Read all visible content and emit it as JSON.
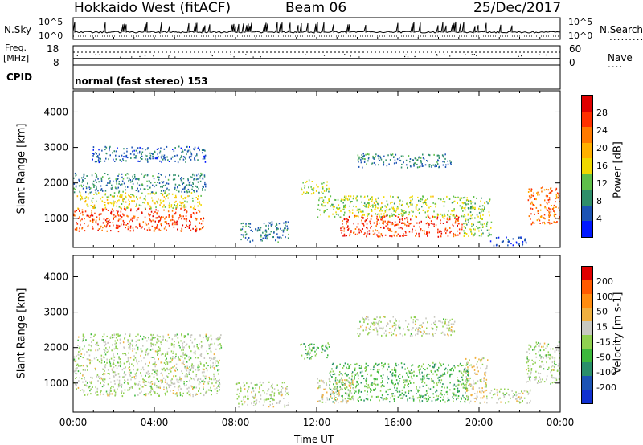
{
  "header": {
    "radar_title": "Hokkaido West (fitACF)",
    "beam": "Beam 06",
    "date": "25/Dec/2017"
  },
  "top_strip": {
    "nsky_label": "N.Sky",
    "nsearch_label": "N.Search",
    "noise_left_ticks": [
      "10^5",
      "10^0"
    ],
    "noise_right_ticks": [
      "10^5",
      "10^0"
    ],
    "freq_label_1": "Freq.",
    "freq_label_2": "[MHz]",
    "freq_ticks": [
      "18",
      "8"
    ],
    "nave_label": "Nave",
    "nave_ticks": [
      "60",
      "0"
    ],
    "cpid_label": "CPID",
    "cpid_text": "normal (fast stereo) 153"
  },
  "x_axis": {
    "label": "Time UT",
    "ticks": [
      "00:00",
      "04:00",
      "08:00",
      "12:00",
      "16:00",
      "20:00",
      "00:00"
    ]
  },
  "colors": {
    "power_scale": [
      "#0018ff",
      "#1c54b4",
      "#2f8f6a",
      "#5fbf4a",
      "#f0d800",
      "#ffb000",
      "#ff7a00",
      "#ff3000",
      "#e00000"
    ],
    "velocity_scale": [
      "#e00000",
      "#ff5a00",
      "#ff8c10",
      "#f0b040",
      "#c8c8c0",
      "#90d050",
      "#3cb83c",
      "#2a8f6a",
      "#1c54b4",
      "#1030d0"
    ]
  },
  "chart_data": [
    {
      "type": "heatmap",
      "title": "Power",
      "xlabel": "Time UT",
      "ylabel": "Slant Range [km]",
      "colorbar_label": "Power [dB]",
      "colorbar_ticks": [
        "28",
        "24",
        "20",
        "16",
        "12",
        "8",
        "4"
      ],
      "y_ticks": [
        "4000",
        "3000",
        "2000",
        "1000"
      ],
      "xlim_hours": [
        0,
        24
      ],
      "ylim_km": [
        180,
        4600
      ],
      "colorbar_range": [
        0,
        32
      ],
      "regions": [
        {
          "t0": 0.0,
          "t1": 6.4,
          "r0": 650,
          "r1": 1300,
          "level": 26
        },
        {
          "t0": 0.1,
          "t1": 6.3,
          "r0": 1300,
          "r1": 1750,
          "level": 16
        },
        {
          "t0": 0.0,
          "t1": 6.5,
          "r0": 1750,
          "r1": 2300,
          "level": 8
        },
        {
          "t0": 0.9,
          "t1": 6.5,
          "r0": 2600,
          "r1": 3050,
          "level": 6
        },
        {
          "t0": 8.2,
          "t1": 10.6,
          "r0": 350,
          "r1": 950,
          "level": 8
        },
        {
          "t0": 11.2,
          "t1": 12.6,
          "r0": 1700,
          "r1": 2100,
          "level": 14
        },
        {
          "t0": 13.1,
          "t1": 19.2,
          "r0": 500,
          "r1": 1100,
          "level": 27
        },
        {
          "t0": 12.0,
          "t1": 19.3,
          "r0": 1050,
          "r1": 1650,
          "level": 14
        },
        {
          "t0": 14.0,
          "t1": 18.6,
          "r0": 2450,
          "r1": 2850,
          "level": 8
        },
        {
          "t0": 19.2,
          "t1": 20.6,
          "r0": 500,
          "r1": 1650,
          "level": 13
        },
        {
          "t0": 22.4,
          "t1": 24.0,
          "r0": 850,
          "r1": 1900,
          "level": 24
        },
        {
          "t0": 20.5,
          "t1": 22.3,
          "r0": 250,
          "r1": 500,
          "level": 4
        }
      ]
    },
    {
      "type": "heatmap",
      "title": "Velocity",
      "xlabel": "Time UT",
      "ylabel": "Slant Range [km]",
      "colorbar_label": "Velocity [m s-1]",
      "colorbar_ticks": [
        "200",
        "100",
        "50",
        "15",
        "-15",
        "-50",
        "-100",
        "-200"
      ],
      "y_ticks": [
        "4000",
        "3000",
        "2000",
        "1000"
      ],
      "xlim_hours": [
        0,
        24
      ],
      "ylim_km": [
        180,
        4600
      ],
      "colorbar_range": [
        -250,
        250
      ],
      "regions": [
        {
          "t0": 0.0,
          "t1": 7.2,
          "r0": 650,
          "r1": 1900,
          "level": 0
        },
        {
          "t0": 0.2,
          "t1": 7.3,
          "r0": 1900,
          "r1": 2400,
          "level": -5
        },
        {
          "t0": 8.0,
          "t1": 10.6,
          "r0": 350,
          "r1": 1050,
          "level": 5
        },
        {
          "t0": 11.1,
          "t1": 12.6,
          "r0": 1700,
          "r1": 2150,
          "level": -70
        },
        {
          "t0": 12.6,
          "t1": 19.5,
          "r0": 480,
          "r1": 1600,
          "level": -70
        },
        {
          "t0": 12.0,
          "t1": 13.8,
          "r0": 450,
          "r1": 1150,
          "level": 40
        },
        {
          "t0": 14.0,
          "t1": 18.8,
          "r0": 2350,
          "r1": 2900,
          "level": 5
        },
        {
          "t0": 19.3,
          "t1": 20.4,
          "r0": 450,
          "r1": 1750,
          "level": 35
        },
        {
          "t0": 20.5,
          "t1": 22.5,
          "r0": 450,
          "r1": 850,
          "level": 5
        },
        {
          "t0": 22.3,
          "t1": 24.0,
          "r0": 1000,
          "r1": 2200,
          "level": 0
        }
      ]
    }
  ]
}
